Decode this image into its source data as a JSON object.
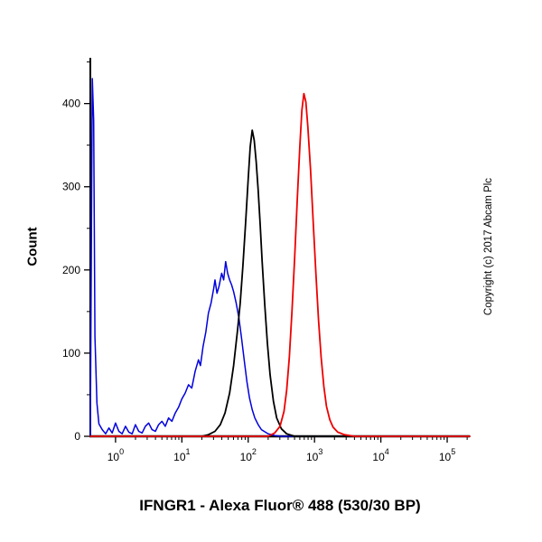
{
  "figure": {
    "background": "#ffffff"
  },
  "chart_data": {
    "type": "line",
    "subtype": "flow-cytometry-histogram",
    "title": "IFNGR1 - Alexa Fluor® 488 (530/30 BP)",
    "xlabel": "",
    "ylabel": "Count",
    "copyright": "Copyright (c) 2017 Abcam Plc",
    "legend": null,
    "grid": false,
    "x_axis": {
      "scale": "log10",
      "range_log10": [
        -0.38,
        5.34
      ],
      "major_ticks_log10": [
        0,
        1,
        2,
        3,
        4,
        5
      ],
      "tick_labels": [
        "10^0",
        "10^1",
        "10^2",
        "10^3",
        "10^4",
        "10^5"
      ]
    },
    "y_axis": {
      "range": [
        0,
        455
      ],
      "major_ticks": [
        0,
        100,
        200,
        300,
        400
      ],
      "minor_tick_step": 50
    },
    "series": [
      {
        "name": "blue",
        "color": "#0000dd",
        "stroke_width": 1.5,
        "peak": {
          "x_log10": 1.66,
          "count": 210
        },
        "points": [
          [
            -0.38,
            0
          ],
          [
            -0.36,
            300
          ],
          [
            -0.35,
            430
          ],
          [
            -0.33,
            380
          ],
          [
            -0.31,
            120
          ],
          [
            -0.28,
            40
          ],
          [
            -0.25,
            15
          ],
          [
            -0.2,
            8
          ],
          [
            -0.15,
            3
          ],
          [
            -0.1,
            10
          ],
          [
            -0.05,
            4
          ],
          [
            0.0,
            16
          ],
          [
            0.05,
            6
          ],
          [
            0.1,
            3
          ],
          [
            0.15,
            12
          ],
          [
            0.2,
            5
          ],
          [
            0.25,
            3
          ],
          [
            0.3,
            14
          ],
          [
            0.35,
            6
          ],
          [
            0.4,
            4
          ],
          [
            0.45,
            12
          ],
          [
            0.5,
            16
          ],
          [
            0.55,
            8
          ],
          [
            0.6,
            6
          ],
          [
            0.65,
            14
          ],
          [
            0.7,
            18
          ],
          [
            0.75,
            12
          ],
          [
            0.8,
            22
          ],
          [
            0.85,
            18
          ],
          [
            0.9,
            28
          ],
          [
            0.95,
            35
          ],
          [
            1.0,
            45
          ],
          [
            1.05,
            52
          ],
          [
            1.1,
            62
          ],
          [
            1.15,
            58
          ],
          [
            1.2,
            78
          ],
          [
            1.25,
            92
          ],
          [
            1.28,
            85
          ],
          [
            1.32,
            108
          ],
          [
            1.36,
            125
          ],
          [
            1.4,
            148
          ],
          [
            1.44,
            160
          ],
          [
            1.48,
            178
          ],
          [
            1.5,
            188
          ],
          [
            1.53,
            172
          ],
          [
            1.56,
            180
          ],
          [
            1.6,
            196
          ],
          [
            1.63,
            188
          ],
          [
            1.66,
            210
          ],
          [
            1.69,
            196
          ],
          [
            1.72,
            188
          ],
          [
            1.75,
            182
          ],
          [
            1.78,
            174
          ],
          [
            1.82,
            160
          ],
          [
            1.86,
            142
          ],
          [
            1.9,
            118
          ],
          [
            1.94,
            92
          ],
          [
            1.98,
            66
          ],
          [
            2.02,
            46
          ],
          [
            2.06,
            32
          ],
          [
            2.1,
            22
          ],
          [
            2.15,
            14
          ],
          [
            2.2,
            8
          ],
          [
            2.3,
            3
          ],
          [
            2.4,
            1
          ],
          [
            2.5,
            0
          ],
          [
            5.34,
            0
          ]
        ]
      },
      {
        "name": "black",
        "color": "#000000",
        "stroke_width": 1.8,
        "peak": {
          "x_log10": 2.06,
          "count": 368
        },
        "points": [
          [
            -0.38,
            0
          ],
          [
            1.3,
            0
          ],
          [
            1.4,
            2
          ],
          [
            1.5,
            6
          ],
          [
            1.58,
            14
          ],
          [
            1.65,
            28
          ],
          [
            1.72,
            52
          ],
          [
            1.78,
            85
          ],
          [
            1.84,
            128
          ],
          [
            1.88,
            160
          ],
          [
            1.92,
            205
          ],
          [
            1.96,
            255
          ],
          [
            2.0,
            310
          ],
          [
            2.03,
            348
          ],
          [
            2.06,
            368
          ],
          [
            2.09,
            356
          ],
          [
            2.12,
            330
          ],
          [
            2.15,
            296
          ],
          [
            2.18,
            255
          ],
          [
            2.21,
            210
          ],
          [
            2.25,
            158
          ],
          [
            2.29,
            112
          ],
          [
            2.33,
            74
          ],
          [
            2.38,
            42
          ],
          [
            2.43,
            22
          ],
          [
            2.5,
            9
          ],
          [
            2.58,
            3
          ],
          [
            2.7,
            0
          ],
          [
            5.34,
            0
          ]
        ]
      },
      {
        "name": "red",
        "color": "#ee0000",
        "stroke_width": 1.8,
        "peak": {
          "x_log10": 2.84,
          "count": 412
        },
        "points": [
          [
            -0.38,
            0
          ],
          [
            2.3,
            0
          ],
          [
            2.4,
            4
          ],
          [
            2.48,
            12
          ],
          [
            2.54,
            30
          ],
          [
            2.58,
            55
          ],
          [
            2.62,
            95
          ],
          [
            2.66,
            150
          ],
          [
            2.7,
            215
          ],
          [
            2.74,
            285
          ],
          [
            2.78,
            350
          ],
          [
            2.81,
            392
          ],
          [
            2.84,
            412
          ],
          [
            2.87,
            402
          ],
          [
            2.9,
            372
          ],
          [
            2.94,
            320
          ],
          [
            2.98,
            258
          ],
          [
            3.02,
            196
          ],
          [
            3.06,
            140
          ],
          [
            3.1,
            95
          ],
          [
            3.14,
            60
          ],
          [
            3.18,
            36
          ],
          [
            3.23,
            20
          ],
          [
            3.28,
            11
          ],
          [
            3.35,
            5
          ],
          [
            3.45,
            2
          ],
          [
            3.6,
            0
          ],
          [
            5.34,
            0
          ]
        ]
      }
    ]
  }
}
